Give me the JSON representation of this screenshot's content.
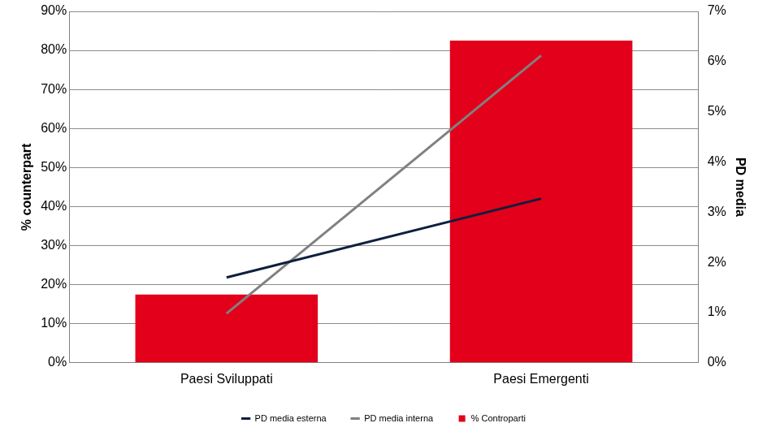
{
  "chart_data": {
    "type": "bar",
    "categories": [
      "Paesi Sviluppati",
      "Paesi Emergenti"
    ],
    "series": [
      {
        "name": "% Controparti",
        "type": "bar",
        "color": "#e2001a",
        "values": [
          17.5,
          82.5
        ]
      },
      {
        "name": "PD media esterna",
        "type": "line",
        "color": "#0f1f3d",
        "axis": "y2",
        "values": [
          1.7,
          3.27
        ]
      },
      {
        "name": "PD media interna",
        "type": "line",
        "color": "#808080",
        "axis": "y2",
        "values": [
          0.98,
          6.12
        ]
      }
    ],
    "y_label": "% counterpart",
    "y2_label": "PD media",
    "ylim": [
      0,
      90
    ],
    "yticks": [
      {
        "value": 0,
        "label": "0%"
      },
      {
        "value": 10,
        "label": "10%"
      },
      {
        "value": 20,
        "label": "20%"
      },
      {
        "value": 30,
        "label": "30%"
      },
      {
        "value": 40,
        "label": "40%"
      },
      {
        "value": 50,
        "label": "50%"
      },
      {
        "value": 60,
        "label": "60%"
      },
      {
        "value": 70,
        "label": "70%"
      },
      {
        "value": 80,
        "label": "80%"
      },
      {
        "value": 90,
        "label": "90%"
      }
    ],
    "y2lim": [
      0,
      7
    ],
    "y2ticks": [
      {
        "value": 0,
        "label": "0%"
      },
      {
        "value": 1,
        "label": "1%"
      },
      {
        "value": 2,
        "label": "2%"
      },
      {
        "value": 3,
        "label": "3%"
      },
      {
        "value": 4,
        "label": "4%"
      },
      {
        "value": 5,
        "label": "5%"
      },
      {
        "value": 6,
        "label": "6%"
      },
      {
        "value": 7,
        "label": "7%"
      }
    ],
    "grid": true,
    "legend": "bottom"
  }
}
